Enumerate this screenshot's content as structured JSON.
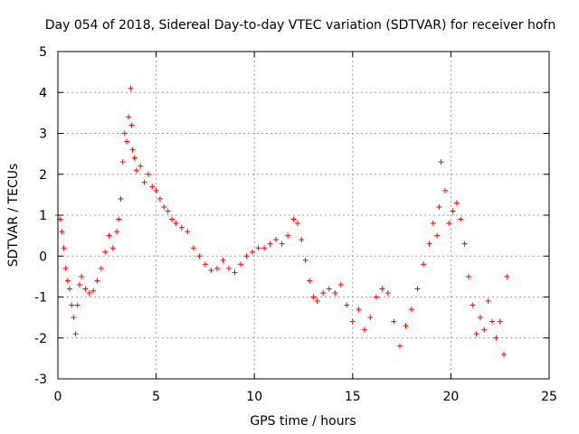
{
  "chart_data": {
    "type": "scatter",
    "title": "Day 054 of 2018, Sidereal Day-to-day VTEC variation (SDTVAR) for receiver hofn",
    "xlabel": "GPS time / hours",
    "ylabel": "SDTVAR / TECUs",
    "xlim": [
      0,
      25
    ],
    "ylim": [
      -3,
      5
    ],
    "xticks": [
      0,
      5,
      10,
      15,
      20,
      25
    ],
    "yticks": [
      -3,
      -2,
      -1,
      0,
      1,
      2,
      3,
      4,
      5
    ],
    "xtick_labels": [
      "0",
      "5",
      "10",
      "15",
      "20",
      "25"
    ],
    "ytick_labels": [
      "-3",
      "-2",
      "-1",
      "0",
      "1",
      "2",
      "3",
      "4",
      "5"
    ],
    "grid": true,
    "marker": "+",
    "series": [
      {
        "name": "SDTVAR",
        "color": "#ff0000",
        "x": [
          0.0,
          0.1,
          0.2,
          0.3,
          0.4,
          0.5,
          0.6,
          0.7,
          0.8,
          0.9,
          1.0,
          1.1,
          1.2,
          1.4,
          1.6,
          1.8,
          2.0,
          2.2,
          2.4,
          2.6,
          2.8,
          3.0,
          3.1,
          3.2,
          3.3,
          3.4,
          3.5,
          3.6,
          3.7,
          3.75,
          3.8,
          3.9,
          4.0,
          4.2,
          4.4,
          4.6,
          4.8,
          5.0,
          5.2,
          5.4,
          5.6,
          5.8,
          6.0,
          6.3,
          6.6,
          6.9,
          7.2,
          7.5,
          7.8,
          8.1,
          8.4,
          8.7,
          9.0,
          9.3,
          9.6,
          9.9,
          10.2,
          10.5,
          10.8,
          11.1,
          11.4,
          11.7,
          12.0,
          12.2,
          12.4,
          12.6,
          12.8,
          13.0,
          13.2,
          13.5,
          13.8,
          14.1,
          14.4,
          14.7,
          15.0,
          15.3,
          15.6,
          15.9,
          16.2,
          16.5,
          16.8,
          17.1,
          17.4,
          17.7,
          18.0,
          18.3,
          18.6,
          18.9,
          19.1,
          19.3,
          19.4,
          19.5,
          19.7,
          19.9,
          20.1,
          20.3,
          20.5,
          20.7,
          20.9,
          21.1,
          21.3,
          21.5,
          21.7,
          21.9,
          22.1,
          22.3,
          22.5,
          22.7,
          22.85
        ],
        "y": [
          1.0,
          0.9,
          0.6,
          0.2,
          -0.3,
          -0.6,
          -0.8,
          -1.2,
          -1.5,
          -1.9,
          -1.2,
          -0.7,
          -0.5,
          -0.8,
          -0.9,
          -0.85,
          -0.6,
          -0.3,
          0.1,
          0.5,
          0.2,
          0.6,
          0.9,
          1.4,
          2.3,
          3.0,
          2.8,
          3.4,
          4.1,
          3.2,
          2.6,
          2.4,
          2.1,
          2.2,
          1.8,
          2.0,
          1.7,
          1.6,
          1.4,
          1.2,
          1.1,
          0.9,
          0.8,
          0.7,
          0.6,
          0.2,
          0.0,
          -0.2,
          -0.35,
          -0.3,
          -0.1,
          -0.3,
          -0.4,
          -0.2,
          0.0,
          0.1,
          0.2,
          0.2,
          0.3,
          0.4,
          0.3,
          0.5,
          0.9,
          0.8,
          0.4,
          -0.1,
          -0.6,
          -1.0,
          -1.1,
          -0.9,
          -0.8,
          -0.9,
          -0.7,
          -1.2,
          -1.6,
          -1.3,
          -1.8,
          -1.5,
          -1.0,
          -0.8,
          -0.9,
          -1.6,
          -2.2,
          -1.7,
          -1.3,
          -0.8,
          -0.2,
          0.3,
          0.8,
          0.5,
          1.2,
          2.3,
          1.6,
          0.8,
          1.1,
          1.3,
          0.9,
          0.3,
          -0.5,
          -1.2,
          -1.9,
          -1.5,
          -1.8,
          -1.1,
          -1.6,
          -2.0,
          -1.6,
          -2.4,
          -0.5
        ]
      }
    ]
  }
}
